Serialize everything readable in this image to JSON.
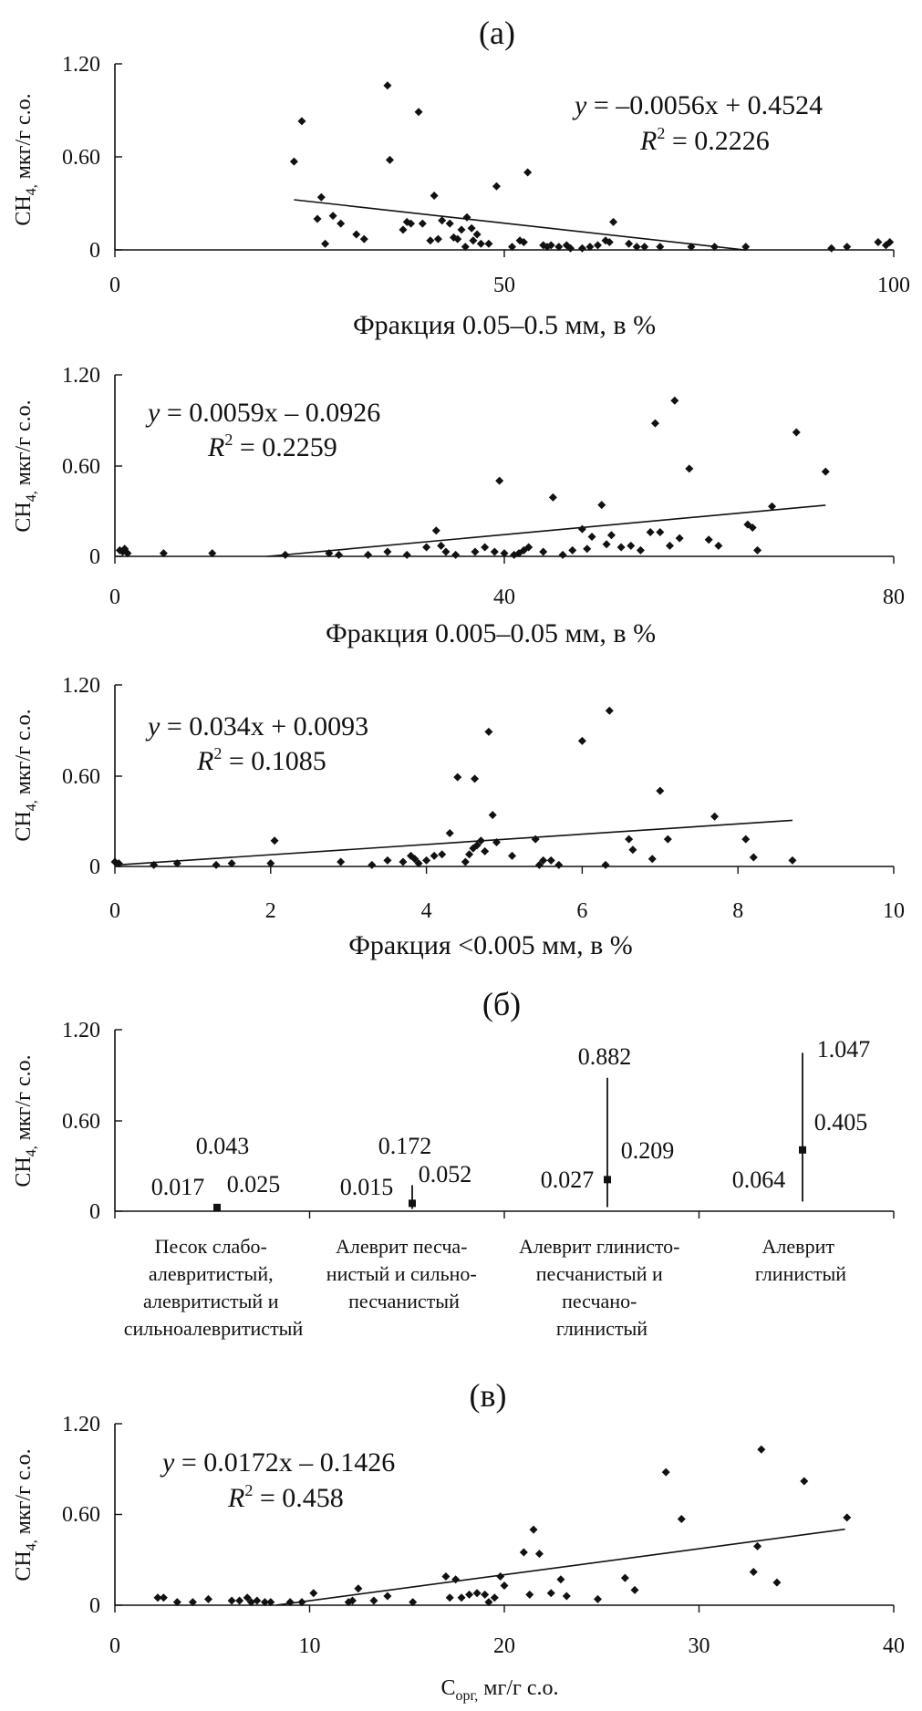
{
  "figure": {
    "labels": {
      "a": "(а)",
      "b": "(б)",
      "c": "(в)"
    }
  },
  "chart_data": [
    {
      "type": "scatter",
      "panel": "(а)",
      "xlabel": "Фракция 0.05–0.5 мм, в %",
      "ylabel": "CH4, мкг/г с.о.",
      "ylabel_parts": {
        "main": "CH",
        "sub": "4,",
        "rest": " мкг/г с.о."
      },
      "xlim": [
        0,
        100
      ],
      "ylim": [
        0,
        1.2
      ],
      "xticks": [
        "0",
        "50",
        "100"
      ],
      "yticks": [
        "0",
        "0.60",
        "1.20"
      ],
      "equation": {
        "y": "y",
        "rhs": " = –0.0056x + 0.4524",
        "r_main": "R",
        "r_sup": "2",
        "r_rest": " = 0.2226"
      },
      "trend": {
        "slope": -0.0056,
        "intercept": 0.4524,
        "x_from": 23,
        "x_to": 81
      },
      "x": [
        23,
        24,
        26,
        26.5,
        27,
        28,
        29,
        31,
        32,
        35,
        35.3,
        37,
        37.5,
        38,
        39,
        39.5,
        40.5,
        41,
        41.5,
        42,
        43,
        43.5,
        44,
        44.5,
        45,
        45.2,
        45.8,
        46,
        46.5,
        47,
        48,
        49,
        51,
        52,
        52.5,
        53,
        55,
        55.5,
        56,
        57,
        58,
        58.5,
        60,
        61,
        62,
        63,
        63.5,
        64,
        66,
        67,
        68,
        70,
        74,
        77,
        81,
        92,
        94,
        98,
        99,
        99.5
      ],
      "y": [
        0.57,
        0.83,
        0.2,
        0.34,
        0.04,
        0.22,
        0.17,
        0.1,
        0.07,
        1.06,
        0.58,
        0.13,
        0.18,
        0.17,
        0.89,
        0.17,
        0.06,
        0.35,
        0.07,
        0.19,
        0.17,
        0.08,
        0.07,
        0.13,
        0.02,
        0.21,
        0.14,
        0.06,
        0.1,
        0.04,
        0.04,
        0.41,
        0.02,
        0.06,
        0.05,
        0.5,
        0.03,
        0.02,
        0.03,
        0.02,
        0.03,
        0.01,
        0.01,
        0.02,
        0.03,
        0.06,
        0.05,
        0.18,
        0.04,
        0.02,
        0.02,
        0.02,
        0.02,
        0.02,
        0.02,
        0.01,
        0.02,
        0.05,
        0.03,
        0.05
      ]
    },
    {
      "type": "scatter",
      "panel": "",
      "xlabel": "Фракция 0.005–0.05 мм, в %",
      "ylabel": "CH4, мкг/г с.о.",
      "ylabel_parts": {
        "main": "CH",
        "sub": "4,",
        "rest": " мкг/г с.о."
      },
      "xlim": [
        0,
        80
      ],
      "ylim": [
        0,
        1.2
      ],
      "xticks": [
        "0",
        "40",
        "80"
      ],
      "yticks": [
        "0",
        "0.60",
        "1.20"
      ],
      "equation": {
        "y": "y",
        "rhs": " = 0.0059x – 0.0926",
        "r_main": "R",
        "r_sup": "2",
        "r_rest": " = 0.2259"
      },
      "trend": {
        "slope": 0.0059,
        "intercept": -0.0926,
        "x_from": 15.7,
        "x_to": 73
      },
      "x": [
        0.5,
        0.8,
        1,
        1.3,
        5,
        10,
        17.5,
        22,
        23,
        26,
        28,
        30,
        32,
        33,
        33.5,
        34,
        35,
        37,
        38,
        39,
        39.5,
        40,
        41,
        41.5,
        42,
        42.5,
        44,
        45,
        46,
        47,
        48,
        48.5,
        49,
        50,
        50.5,
        51,
        52,
        53,
        54,
        55,
        55.5,
        56,
        57,
        57.5,
        58,
        59,
        61,
        62,
        65,
        65.5,
        66,
        67.5,
        70,
        73
      ],
      "y": [
        0.04,
        0.03,
        0.05,
        0.02,
        0.02,
        0.02,
        0.01,
        0.02,
        0.01,
        0.01,
        0.03,
        0.01,
        0.06,
        0.17,
        0.07,
        0.03,
        0.01,
        0.03,
        0.06,
        0.03,
        0.5,
        0.02,
        0.01,
        0.02,
        0.04,
        0.06,
        0.03,
        0.39,
        0.01,
        0.04,
        0.18,
        0.05,
        0.13,
        0.34,
        0.08,
        0.14,
        0.06,
        0.07,
        0.04,
        0.16,
        0.88,
        0.16,
        0.07,
        1.03,
        0.12,
        0.58,
        0.11,
        0.07,
        0.21,
        0.19,
        0.04,
        0.33,
        0.82,
        0.56
      ]
    },
    {
      "type": "scatter",
      "panel": "",
      "xlabel": "Фракция <0.005 мм, в %",
      "ylabel": "CH4, мкг/г с.о.",
      "ylabel_parts": {
        "main": "CH",
        "sub": "4,",
        "rest": " мкг/г с.о."
      },
      "xlim": [
        0,
        10
      ],
      "ylim": [
        0,
        1.2
      ],
      "xticks": [
        "0",
        "2",
        "4",
        "6",
        "8",
        "10"
      ],
      "yticks": [
        "0",
        "0.60",
        "1.20"
      ],
      "equation": {
        "y": "y",
        "rhs": " = 0.034x + 0.0093",
        "r_main": "R",
        "r_sup": "2",
        "r_rest": " = 0.1085"
      },
      "trend": {
        "slope": 0.034,
        "intercept": 0.0093,
        "x_from": 0,
        "x_to": 8.7
      },
      "x": [
        0,
        0.05,
        0.5,
        0.8,
        1.3,
        1.5,
        2,
        2.05,
        2.9,
        3.3,
        3.5,
        3.7,
        3.8,
        3.85,
        3.9,
        4.0,
        4.1,
        4.2,
        4.3,
        4.4,
        4.5,
        4.55,
        4.6,
        4.62,
        4.65,
        4.7,
        4.75,
        4.8,
        4.85,
        4.9,
        5.1,
        5.4,
        5.45,
        5.5,
        5.6,
        5.7,
        6,
        6.3,
        6.35,
        6.6,
        6.65,
        6.9,
        7.0,
        7.1,
        7.7,
        8.1,
        8.2,
        8.7
      ],
      "y": [
        0.03,
        0.02,
        0.01,
        0.02,
        0.01,
        0.02,
        0.02,
        0.17,
        0.03,
        0.01,
        0.04,
        0.03,
        0.07,
        0.05,
        0.02,
        0.04,
        0.07,
        0.08,
        0.22,
        0.59,
        0.03,
        0.08,
        0.12,
        0.58,
        0.14,
        0.17,
        0.1,
        0.89,
        0.34,
        0.16,
        0.07,
        0.18,
        0.01,
        0.04,
        0.04,
        0.01,
        0.83,
        0.01,
        1.03,
        0.18,
        0.11,
        0.05,
        0.5,
        0.18,
        0.33,
        0.18,
        0.06,
        0.04
      ]
    },
    {
      "type": "range",
      "panel": "(б)",
      "ylabel": "CH4, мкг/г с.о.",
      "ylabel_parts": {
        "main": "CH",
        "sub": "4,",
        "rest": " мкг/г с.о."
      },
      "ylim": [
        0,
        1.2
      ],
      "yticks": [
        "0",
        "0.60",
        "1.20"
      ],
      "categories": [
        [
          "Песок слабо-",
          "алевритистый,",
          "алевритистый и",
          "сильноалевритистый"
        ],
        [
          "Алеврит песча-",
          "нистый и сильно-",
          "песчанистый"
        ],
        [
          "Алеврит глинисто-",
          "песчанистый и",
          "песчано-",
          "глинистый"
        ],
        [
          "Алеврит",
          "глинистый"
        ]
      ],
      "series": [
        {
          "min": 0.017,
          "max": 0.043,
          "mean": 0.025,
          "min_label": "0.017",
          "max_label": "0.043",
          "mean_label": "0.025"
        },
        {
          "min": 0.015,
          "max": 0.172,
          "mean": 0.052,
          "min_label": "0.015",
          "max_label": "0.172",
          "mean_label": "0.052"
        },
        {
          "min": 0.027,
          "max": 0.882,
          "mean": 0.209,
          "min_label": "0.027",
          "max_label": "0.882",
          "mean_label": "0.209"
        },
        {
          "min": 0.064,
          "max": 1.047,
          "mean": 0.405,
          "min_label": "0.064",
          "max_label": "1.047",
          "mean_label": "0.405"
        }
      ]
    },
    {
      "type": "scatter",
      "panel": "(в)",
      "xlabel": "Cорг, мг/г с.о.",
      "xlabel_parts": {
        "main": "C",
        "sub": "орг,",
        "rest": " мг/г с.о."
      },
      "ylabel": "CH4, мкг/г с.о.",
      "ylabel_parts": {
        "main": "CH",
        "sub": "4,",
        "rest": " мкг/г с.о."
      },
      "xlim": [
        0,
        40
      ],
      "ylim": [
        0,
        1.2
      ],
      "xticks": [
        "0",
        "10",
        "20",
        "30",
        "40"
      ],
      "yticks": [
        "0",
        "0.60",
        "1.20"
      ],
      "equation": {
        "y": "y",
        "rhs": " = 0.0172x – 0.1426",
        "r_main": "R",
        "r_sup": "2",
        "r_rest": " = 0.458"
      },
      "trend": {
        "slope": 0.0172,
        "intercept": -0.1426,
        "x_from": 8.3,
        "x_to": 37.5
      },
      "x": [
        2.2,
        2.5,
        3.2,
        4,
        4.8,
        6,
        6.4,
        6.8,
        7.0,
        7.3,
        7.7,
        8,
        9,
        9.6,
        10.2,
        12,
        12.2,
        12.5,
        13.3,
        14,
        15.3,
        17,
        17.2,
        17.5,
        17.8,
        18.2,
        18.6,
        19,
        19.2,
        19.5,
        19.8,
        20,
        21,
        21.3,
        21.5,
        21.8,
        22.4,
        22.9,
        23.2,
        24.8,
        26.2,
        26.7,
        28.3,
        29.1,
        32.8,
        33.0,
        33.2,
        34,
        35.4,
        37.6
      ],
      "y": [
        0.05,
        0.05,
        0.02,
        0.02,
        0.04,
        0.03,
        0.03,
        0.05,
        0.02,
        0.03,
        0.02,
        0.02,
        0.02,
        0.02,
        0.08,
        0.02,
        0.03,
        0.11,
        0.03,
        0.06,
        0.02,
        0.19,
        0.05,
        0.17,
        0.05,
        0.07,
        0.08,
        0.07,
        0.02,
        0.05,
        0.19,
        0.13,
        0.35,
        0.07,
        0.5,
        0.34,
        0.08,
        0.17,
        0.06,
        0.04,
        0.18,
        0.1,
        0.88,
        0.57,
        0.22,
        0.39,
        1.03,
        0.15,
        0.82,
        0.58
      ]
    }
  ]
}
